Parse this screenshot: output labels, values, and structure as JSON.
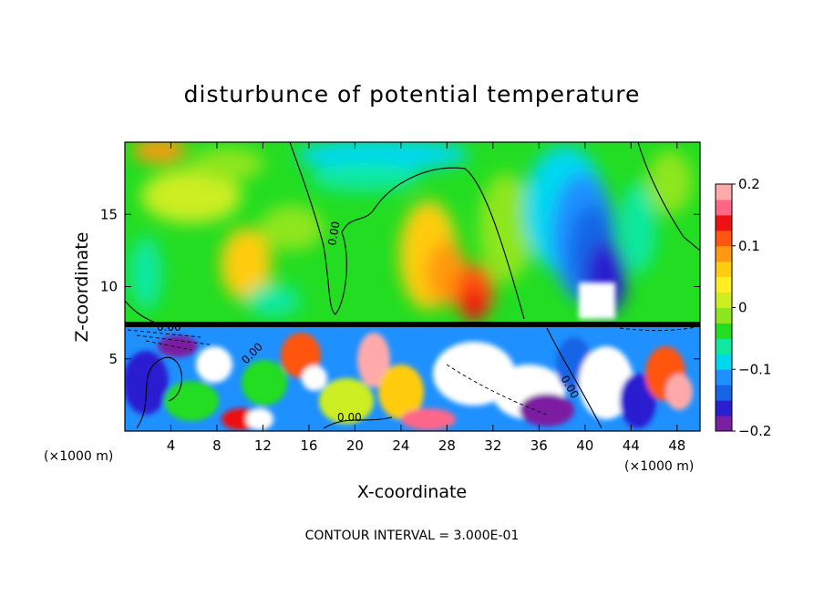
{
  "chart_data": {
    "type": "heatmap",
    "title": "disturbunce of potential temperature",
    "xlabel": "X-coordinate",
    "ylabel": "Z-coordinate",
    "x_unit_left": "(×1000 m)",
    "x_unit_right": "(×1000 m)",
    "footer": "CONTOUR INTERVAL = 3.000E-01",
    "x_ticks": [
      "4",
      "8",
      "12",
      "16",
      "20",
      "24",
      "28",
      "32",
      "36",
      "40",
      "44",
      "48"
    ],
    "y_ticks": [
      "5",
      "10",
      "15"
    ],
    "xlim": [
      0,
      50
    ],
    "ylim": [
      0,
      20
    ],
    "colorbar_ticks": [
      "0.2",
      "0.1",
      "0",
      "−0.1",
      "−0.2"
    ],
    "colorbar_range": [
      -0.2,
      0.2
    ],
    "contour_labels": [
      "0.00",
      "0.00",
      "0.00",
      "0.00",
      "0.00"
    ],
    "colors": [
      "#7b1fa2",
      "#2a1fd0",
      "#1565e6",
      "#1e90ff",
      "#00d8f0",
      "#10e8a0",
      "#22dd22",
      "#8ee61e",
      "#ccee22",
      "#ffee22",
      "#ffcc11",
      "#ff9911",
      "#ff5511",
      "#ee1111",
      "#ff6688",
      "#ffaaaa"
    ]
  }
}
